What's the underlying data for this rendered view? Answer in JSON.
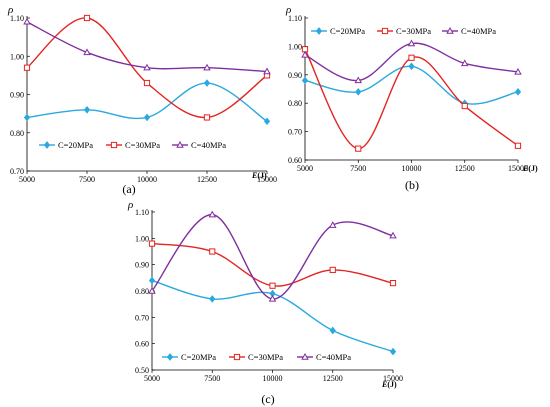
{
  "chart_data": [
    {
      "type": "line",
      "panel": "(a)",
      "ylabel": "ρ",
      "xlabel_prefix": "E",
      "xlabel_unit": "(J)",
      "x": [
        5000,
        7500,
        10000,
        12500,
        15000
      ],
      "x_ticks": [
        "5000",
        "7500",
        "10000",
        "12500",
        "15000"
      ],
      "y_ticks": [
        "0.70",
        "0.80",
        "0.90",
        "1.00",
        "1.10"
      ],
      "ylim": [
        0.7,
        1.1
      ],
      "legend_position": "bottom",
      "series": [
        {
          "name": "C=20MPa",
          "values": [
            0.84,
            0.86,
            0.84,
            0.93,
            0.83
          ],
          "color": "#2aa9e0",
          "marker": "diamond"
        },
        {
          "name": "C=30MPa",
          "values": [
            0.97,
            1.1,
            0.93,
            0.84,
            0.95
          ],
          "color": "#e52421",
          "marker": "square"
        },
        {
          "name": "C=40MPa",
          "values": [
            1.09,
            1.01,
            0.97,
            0.97,
            0.96
          ],
          "color": "#7f2f9f",
          "marker": "triangle"
        }
      ]
    },
    {
      "type": "line",
      "panel": "(b)",
      "ylabel": "ρ",
      "xlabel_prefix": "E",
      "xlabel_unit": "(J)",
      "x": [
        5000,
        7500,
        10000,
        12500,
        15000
      ],
      "x_ticks": [
        "5000",
        "7500",
        "10000",
        "12500",
        "15000"
      ],
      "y_ticks": [
        "0.60",
        "0.70",
        "0.80",
        "0.90",
        "1.00",
        "1.10"
      ],
      "ylim": [
        0.6,
        1.1
      ],
      "legend_position": "top",
      "series": [
        {
          "name": "C=20MPa",
          "values": [
            0.88,
            0.84,
            0.93,
            0.8,
            0.84
          ],
          "color": "#2aa9e0",
          "marker": "diamond"
        },
        {
          "name": "C=30MPa",
          "values": [
            0.99,
            0.64,
            0.96,
            0.79,
            0.65
          ],
          "color": "#e52421",
          "marker": "square"
        },
        {
          "name": "C=40MPa",
          "values": [
            0.97,
            0.88,
            1.01,
            0.94,
            0.91
          ],
          "color": "#7f2f9f",
          "marker": "triangle"
        }
      ]
    },
    {
      "type": "line",
      "panel": "(c)",
      "ylabel": "ρ",
      "xlabel_prefix": "E",
      "xlabel_unit": "(J)",
      "x": [
        5000,
        7500,
        10000,
        12500,
        15000
      ],
      "x_ticks": [
        "5000",
        "7500",
        "10000",
        "12500",
        "15000"
      ],
      "y_ticks": [
        "0.50",
        "0.60",
        "0.70",
        "0.80",
        "0.90",
        "1.00",
        "1.10"
      ],
      "ylim": [
        0.5,
        1.1
      ],
      "legend_position": "bottom",
      "series": [
        {
          "name": "C=20MPa",
          "values": [
            0.84,
            0.77,
            0.79,
            0.65,
            0.57
          ],
          "color": "#2aa9e0",
          "marker": "diamond"
        },
        {
          "name": "C=30MPa",
          "values": [
            0.98,
            0.95,
            0.82,
            0.88,
            0.83
          ],
          "color": "#e52421",
          "marker": "square"
        },
        {
          "name": "C=40MPa",
          "values": [
            0.8,
            1.09,
            0.77,
            1.05,
            1.01
          ],
          "color": "#7f2f9f",
          "marker": "triangle"
        }
      ]
    }
  ]
}
